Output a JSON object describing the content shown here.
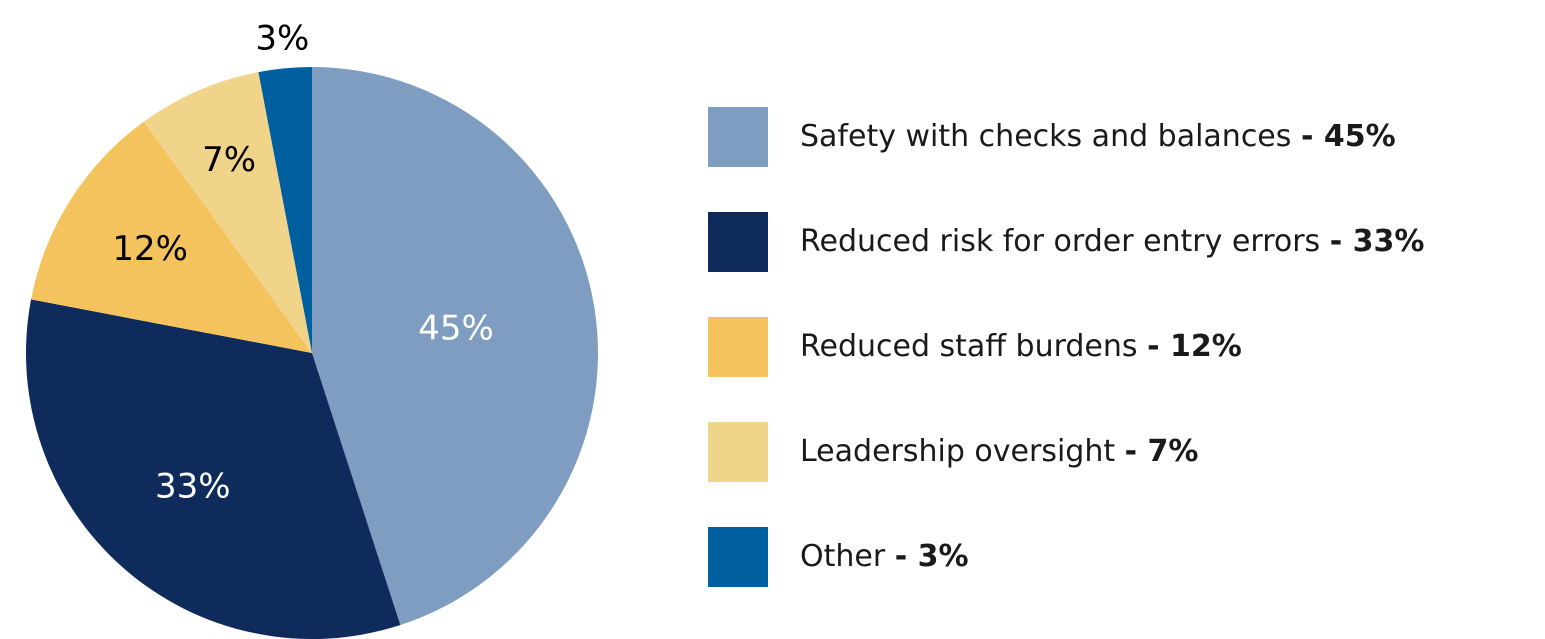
{
  "chart_data": {
    "type": "pie",
    "categories": [
      "Safety with checks and balances",
      "Reduced risk for order entry errors",
      "Reduced staff burdens",
      "Leadership oversight",
      "Other"
    ],
    "values": [
      45,
      33,
      12,
      7,
      3
    ],
    "value_labels": [
      "45%",
      "33%",
      "12%",
      "7%",
      "3%"
    ],
    "legend_value_labels": [
      "- 45%",
      "- 33%",
      "- 12%",
      "- 7%",
      "- 3%"
    ],
    "colors": [
      "#7f9dc0",
      "#0f2b5c",
      "#f4c35e",
      "#efd48a",
      "#005f9e"
    ],
    "legend": "right"
  }
}
